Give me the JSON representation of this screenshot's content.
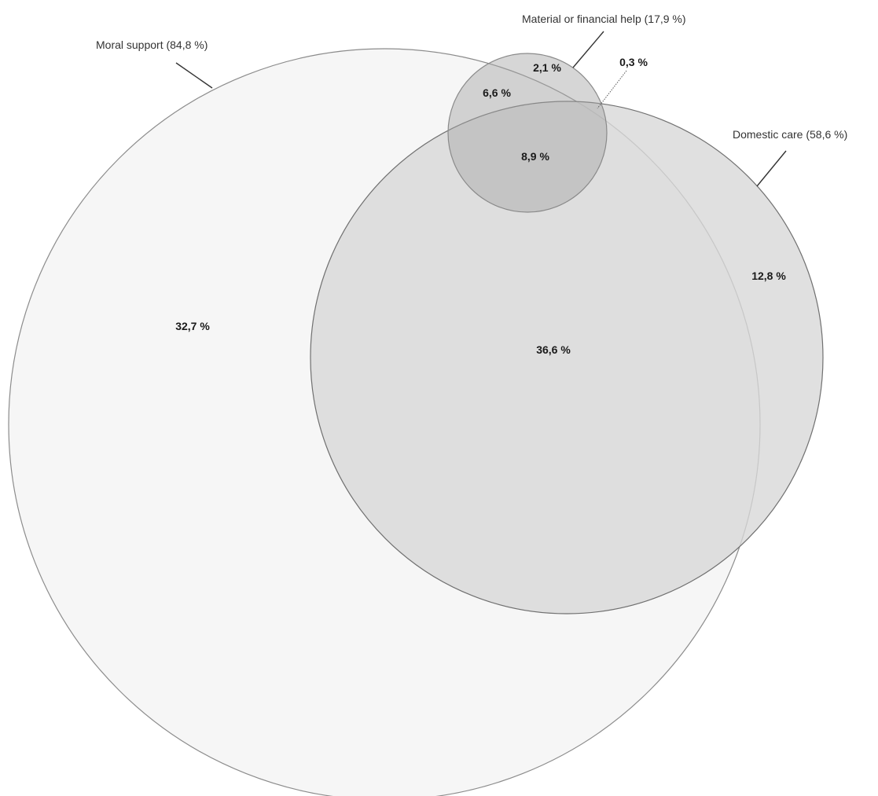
{
  "chart_data": {
    "type": "venn",
    "sets": [
      {
        "key": "moral",
        "label": "Moral support (84,8 %)",
        "value": 84.8,
        "fill": "#f6f6f6",
        "stroke": "#8c8c8c"
      },
      {
        "key": "domestic",
        "label": "Domestic care (58,6 %)",
        "value": 58.6,
        "fill": "#d7d7d7",
        "stroke": "#707070"
      },
      {
        "key": "material",
        "label": "Material or financial help (17,9 %)",
        "value": 17.9,
        "fill": "#a3a3a3",
        "stroke": "#8a8a8a"
      }
    ],
    "regions": [
      {
        "sets": [
          "moral"
        ],
        "label": "32,7 %",
        "value": 32.7
      },
      {
        "sets": [
          "domestic"
        ],
        "label": "12,8 %",
        "value": 12.8
      },
      {
        "sets": [
          "material"
        ],
        "label": "2,1 %",
        "value": 2.1
      },
      {
        "sets": [
          "moral",
          "domestic"
        ],
        "label": "36,6 %",
        "value": 36.6
      },
      {
        "sets": [
          "moral",
          "material"
        ],
        "label": "6,6 %",
        "value": 6.6
      },
      {
        "sets": [
          "domestic",
          "material"
        ],
        "label": "0,3 %",
        "value": 0.3
      },
      {
        "sets": [
          "moral",
          "domestic",
          "material"
        ],
        "label": "8,9 %",
        "value": 8.9
      }
    ]
  }
}
